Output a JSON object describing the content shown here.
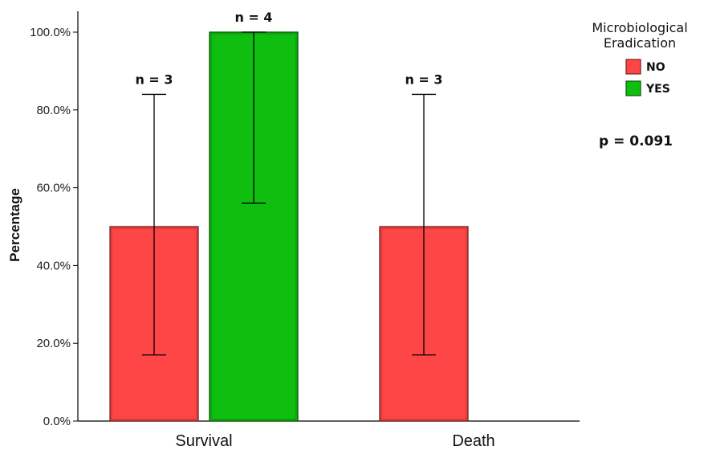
{
  "chart_data": {
    "type": "bar",
    "title": "",
    "xlabel": "",
    "ylabel": "Percentage",
    "ylim": [
      0,
      100
    ],
    "y_ticks": [
      "0.0%",
      "20.0%",
      "40.0%",
      "60.0%",
      "80.0%",
      "100.0%"
    ],
    "y_tick_values": [
      0,
      20,
      40,
      60,
      80,
      100
    ],
    "grid": false,
    "legend_position": "top-right",
    "categories": [
      "Survival",
      "Death"
    ],
    "legend": {
      "title_line1": "Microbiological",
      "title_line2": "Eradication",
      "entries": [
        {
          "label": "NO",
          "color": "#ff4646"
        },
        {
          "label": "YES",
          "color": "#0fbf0f"
        }
      ]
    },
    "series": [
      {
        "name": "NO",
        "color": "#ff4646",
        "values": [
          50,
          50
        ],
        "error_low": [
          17,
          17
        ],
        "error_high": [
          84,
          84
        ],
        "n_labels": [
          "n = 3",
          "n = 3"
        ]
      },
      {
        "name": "YES",
        "color": "#0fbf0f",
        "values": [
          100,
          null
        ],
        "error_low": [
          56,
          null
        ],
        "error_high": [
          100,
          null
        ],
        "n_labels": [
          "n = 4",
          null
        ]
      }
    ],
    "annotation": "p = 0.091"
  }
}
